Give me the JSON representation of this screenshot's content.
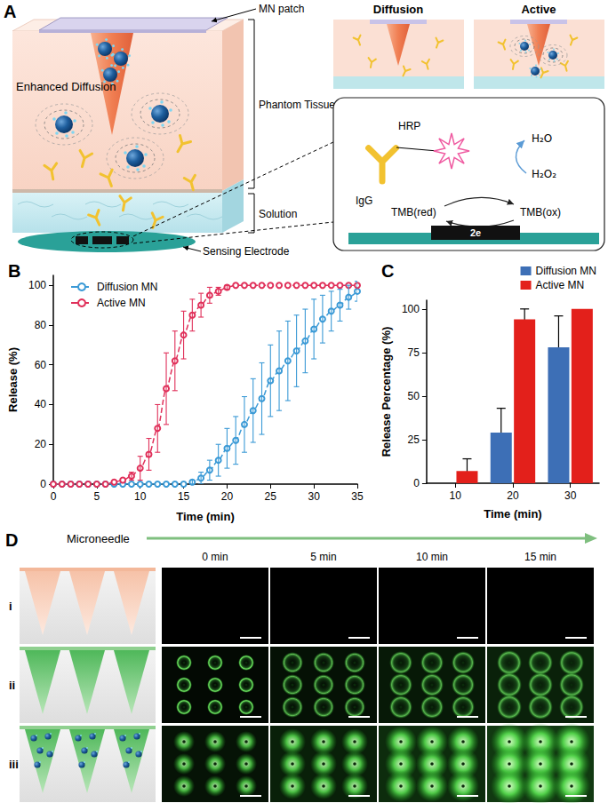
{
  "panel_A": {
    "label": "A",
    "patch": "MN patch",
    "tissue": "Phantom Tissue",
    "enhanced": "Enhanced Diffusion",
    "solution": "Solution",
    "electrode": "Sensing Electrode",
    "modes": [
      "Diffusion",
      "Active"
    ],
    "inset": {
      "antibody": "IgG",
      "enzyme": "HRP",
      "water": "H₂O",
      "peroxide": "H₂O₂",
      "reduced": "TMB(red)",
      "oxidized": "TMB(ox)",
      "electrons": "2e"
    }
  },
  "chart_data": [
    {
      "type": "line",
      "panel_label": "B",
      "x_label": "Time (min)",
      "y_label": "Release (%)",
      "x": [
        0,
        1,
        2,
        3,
        4,
        5,
        6,
        7,
        8,
        9,
        10,
        11,
        12,
        13,
        14,
        15,
        16,
        17,
        18,
        19,
        20,
        21,
        22,
        23,
        24,
        25,
        26,
        27,
        28,
        29,
        30,
        31,
        32,
        33,
        34,
        35
      ],
      "series": [
        {
          "name": "Diffusion MN",
          "color": "#3b9ad6",
          "marker": "circle",
          "line_style": "dashed",
          "values": [
            0,
            0,
            0,
            0,
            0,
            0,
            0,
            0,
            0,
            0,
            0,
            0,
            0,
            0,
            0,
            0,
            1,
            3,
            7,
            12,
            18,
            22,
            30,
            37,
            43,
            52,
            57,
            62,
            67,
            72,
            78,
            83,
            87,
            90,
            94,
            97
          ],
          "errors": [
            0,
            0,
            0,
            0,
            0,
            0,
            0,
            0,
            0,
            0,
            0,
            0,
            0,
            0,
            0,
            0,
            1,
            3,
            5,
            8,
            10,
            12,
            14,
            16,
            18,
            18,
            20,
            20,
            18,
            16,
            15,
            12,
            10,
            8,
            6,
            5
          ]
        },
        {
          "name": "Active MN",
          "color": "#e0305a",
          "marker": "circle",
          "line_style": "dashed",
          "values": [
            0,
            0,
            0,
            0,
            0,
            0,
            0,
            1,
            2,
            4,
            8,
            15,
            28,
            48,
            62,
            75,
            85,
            90,
            95,
            97,
            99,
            100,
            100,
            100,
            100,
            100,
            100,
            100,
            100,
            100,
            100,
            100,
            100,
            100,
            100,
            100
          ],
          "errors": [
            0,
            0,
            0,
            0,
            0,
            0,
            0,
            0,
            0,
            2,
            6,
            8,
            12,
            18,
            15,
            12,
            8,
            6,
            4,
            2,
            1,
            0,
            0,
            0,
            0,
            0,
            0,
            0,
            0,
            0,
            0,
            0,
            0,
            0,
            0,
            0
          ]
        }
      ],
      "xlim": [
        0,
        35
      ],
      "xticks": [
        0,
        5,
        10,
        15,
        20,
        25,
        30,
        35
      ],
      "ylim": [
        0,
        105
      ],
      "yticks": [
        0,
        20,
        40,
        60,
        80,
        100
      ],
      "grid": false,
      "legend": "top-left"
    },
    {
      "type": "bar",
      "panel_label": "C",
      "x_label": "Time (min)",
      "y_label": "Release Percentage (%)",
      "categories": [
        "10",
        "20",
        "30"
      ],
      "series": [
        {
          "name": "Diffusion MN",
          "color": "#3d6fb6",
          "values": [
            0,
            29,
            78
          ],
          "errors": [
            0,
            14,
            18
          ]
        },
        {
          "name": "Active MN",
          "color": "#e3201b",
          "values": [
            7,
            94,
            100
          ],
          "errors": [
            7,
            6,
            0
          ]
        }
      ],
      "ylim": [
        0,
        105
      ],
      "yticks": [
        0,
        25,
        50,
        75,
        100
      ],
      "grid": false,
      "legend": "top-right"
    }
  ],
  "panel_D": {
    "label": "D",
    "arrow_label": "Microneedle",
    "times": [
      "0 min",
      "5 min",
      "10 min",
      "15 min"
    ],
    "rows": [
      "i",
      "ii",
      "iii"
    ]
  }
}
